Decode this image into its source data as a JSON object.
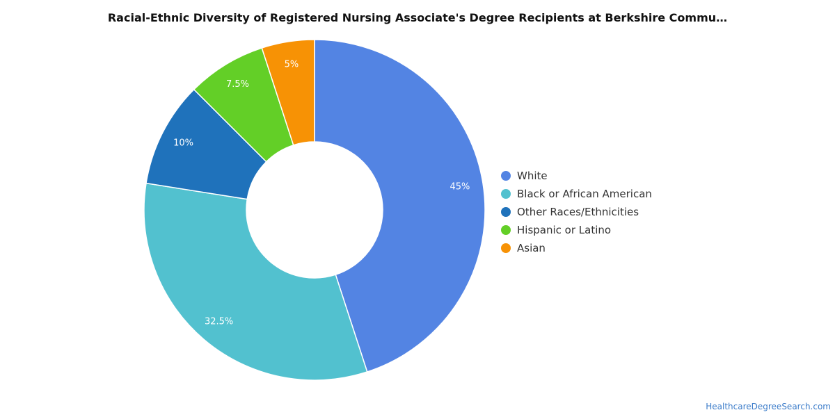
{
  "chart_data": {
    "type": "pie",
    "title": "Racial-Ethnic Diversity of Registered Nursing Associate's Degree Recipients at Berkshire Commu…",
    "donut": true,
    "categories": [
      "White",
      "Black or African American",
      "Other Races/Ethnicities",
      "Hispanic or Latino",
      "Asian"
    ],
    "values": [
      45,
      32.5,
      10,
      7.5,
      5
    ],
    "labels": [
      "45%",
      "32.5%",
      "10%",
      "7.5%",
      "5%"
    ],
    "colors": [
      "#5384e3",
      "#52c1cf",
      "#1f72bb",
      "#63cf27",
      "#f79205"
    ],
    "legend": "right"
  },
  "legend_items": [
    {
      "label": "White",
      "color": "#5384e3"
    },
    {
      "label": "Black or African American",
      "color": "#52c1cf"
    },
    {
      "label": "Other Races/Ethnicities",
      "color": "#1f72bb"
    },
    {
      "label": "Hispanic or Latino",
      "color": "#63cf27"
    },
    {
      "label": "Asian",
      "color": "#f79205"
    }
  ],
  "footer": {
    "source": "HealthcareDegreeSearch.com"
  }
}
